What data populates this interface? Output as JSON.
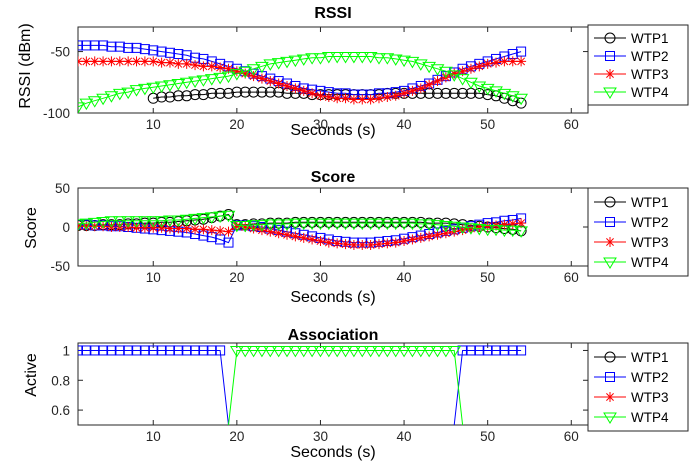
{
  "figure": {
    "width": 691,
    "height": 468
  },
  "series_styles": [
    {
      "name": "WTP1",
      "color": "#000000",
      "marker": "circle"
    },
    {
      "name": "WTP2",
      "color": "#0000FF",
      "marker": "square"
    },
    {
      "name": "WTP3",
      "color": "#FF0000",
      "marker": "asterisk"
    },
    {
      "name": "WTP4",
      "color": "#00FF00",
      "marker": "triangle-down"
    }
  ],
  "chart_data": [
    {
      "type": "line",
      "title": "RSSI",
      "xlabel": "Seconds (s)",
      "ylabel": "RSSI (dBm)",
      "xlim": [
        1,
        62
      ],
      "ylim": [
        -100,
        -30
      ],
      "xticks": [
        10,
        20,
        30,
        40,
        50,
        60
      ],
      "yticks": [
        -100,
        -50
      ],
      "legend_position": "right",
      "grid": false,
      "x": [
        1,
        2,
        3,
        4,
        5,
        6,
        7,
        8,
        9,
        10,
        11,
        12,
        13,
        14,
        15,
        16,
        17,
        18,
        19,
        20,
        21,
        22,
        23,
        24,
        25,
        26,
        27,
        28,
        29,
        30,
        31,
        32,
        33,
        34,
        35,
        36,
        37,
        38,
        39,
        40,
        41,
        42,
        43,
        44,
        45,
        46,
        47,
        48,
        49,
        50,
        51,
        52,
        53,
        54
      ],
      "series": [
        {
          "name": "WTP1",
          "values": [
            null,
            null,
            null,
            null,
            null,
            null,
            null,
            null,
            null,
            -88,
            -87,
            -87,
            -86,
            -86,
            -85,
            -85,
            -84,
            -84,
            -84,
            -83,
            -83,
            -83,
            -83,
            -83,
            -83,
            -84,
            -84,
            -84,
            -85,
            -85,
            -85,
            -85,
            -85,
            -85,
            -85,
            -85,
            -85,
            -84,
            -84,
            -84,
            -84,
            -84,
            -84,
            -84,
            -84,
            -84,
            -84,
            -84,
            -84,
            -85,
            -86,
            -88,
            -90,
            -92
          ]
        },
        {
          "name": "WTP2",
          "values": [
            -45,
            -45,
            -45,
            -45,
            -46,
            -46,
            -47,
            -47,
            -48,
            -49,
            -50,
            -51,
            -52,
            -53,
            -55,
            -56,
            -58,
            -60,
            -62,
            -64,
            -66,
            -68,
            -70,
            -72,
            -74,
            -76,
            -78,
            -80,
            -81,
            -82,
            -83,
            -84,
            -84,
            -85,
            -85,
            -85,
            -84,
            -84,
            -83,
            -82,
            -80,
            -78,
            -76,
            -73,
            -70,
            -67,
            -64,
            -62,
            -60,
            -58,
            -56,
            -54,
            -52,
            -50
          ]
        },
        {
          "name": "WTP3",
          "values": [
            -58,
            -58,
            -58,
            -58,
            -58,
            -58,
            -58,
            -58,
            -58,
            -58,
            -59,
            -59,
            -60,
            -60,
            -61,
            -62,
            -62,
            -63,
            -64,
            -66,
            -68,
            -70,
            -72,
            -74,
            -76,
            -78,
            -80,
            -82,
            -84,
            -86,
            -87,
            -88,
            -88,
            -89,
            -89,
            -89,
            -88,
            -87,
            -86,
            -84,
            -82,
            -80,
            -77,
            -74,
            -71,
            -68,
            -66,
            -64,
            -62,
            -60,
            -59,
            -58,
            -58,
            -58
          ]
        },
        {
          "name": "WTP4",
          "values": [
            -95,
            -92,
            -90,
            -88,
            -86,
            -84,
            -83,
            -81,
            -80,
            -79,
            -78,
            -77,
            -76,
            -75,
            -74,
            -73,
            -72,
            -71,
            -70,
            -68,
            -66,
            -64,
            -62,
            -60,
            -59,
            -58,
            -57,
            -56,
            -55,
            -55,
            -54,
            -54,
            -54,
            -54,
            -54,
            -54,
            -55,
            -55,
            -56,
            -57,
            -58,
            -60,
            -62,
            -64,
            -66,
            -69,
            -72,
            -75,
            -78,
            -80,
            -82,
            -84,
            -86,
            -88
          ]
        }
      ]
    },
    {
      "type": "line",
      "title": "Score",
      "xlabel": "Seconds (s)",
      "ylabel": "Score",
      "xlim": [
        1,
        62
      ],
      "ylim": [
        -50,
        50
      ],
      "xticks": [
        10,
        20,
        30,
        40,
        50,
        60
      ],
      "yticks": [
        -50,
        0,
        50
      ],
      "legend_position": "right",
      "grid": false,
      "x": [
        1,
        2,
        3,
        4,
        5,
        6,
        7,
        8,
        9,
        10,
        11,
        12,
        13,
        14,
        15,
        16,
        17,
        18,
        19,
        20,
        21,
        22,
        23,
        24,
        25,
        26,
        27,
        28,
        29,
        30,
        31,
        32,
        33,
        34,
        35,
        36,
        37,
        38,
        39,
        40,
        41,
        42,
        43,
        44,
        45,
        46,
        47,
        48,
        49,
        50,
        51,
        52,
        53,
        54
      ],
      "series": [
        {
          "name": "WTP1",
          "values": [
            2,
            2,
            2,
            3,
            3,
            3,
            4,
            4,
            5,
            5,
            6,
            6,
            7,
            8,
            9,
            10,
            12,
            14,
            16,
            3,
            3,
            4,
            4,
            5,
            5,
            5,
            6,
            6,
            6,
            6,
            6,
            6,
            6,
            6,
            6,
            6,
            6,
            6,
            6,
            6,
            6,
            6,
            5,
            5,
            5,
            4,
            3,
            2,
            1,
            0,
            -1,
            -2,
            -3,
            -5
          ]
        },
        {
          "name": "WTP2",
          "values": [
            3,
            3,
            2,
            2,
            1,
            1,
            0,
            -1,
            -2,
            -3,
            -4,
            -5,
            -6,
            -7,
            -9,
            -11,
            -13,
            -16,
            -20,
            2,
            2,
            1,
            0,
            -2,
            -4,
            -6,
            -8,
            -10,
            -12,
            -14,
            -16,
            -18,
            -19,
            -20,
            -20,
            -20,
            -19,
            -18,
            -17,
            -15,
            -13,
            -11,
            -9,
            -7,
            -5,
            -3,
            -1,
            1,
            3,
            5,
            6,
            8,
            9,
            11
          ]
        },
        {
          "name": "WTP3",
          "values": [
            1,
            1,
            1,
            1,
            0,
            0,
            0,
            -1,
            -1,
            -1,
            -1,
            -2,
            -2,
            -2,
            -3,
            -3,
            -4,
            -5,
            -6,
            1,
            0,
            -2,
            -4,
            -6,
            -8,
            -10,
            -12,
            -14,
            -16,
            -18,
            -20,
            -21,
            -22,
            -23,
            -23,
            -23,
            -22,
            -21,
            -20,
            -18,
            -16,
            -14,
            -12,
            -10,
            -8,
            -6,
            -4,
            -2,
            0,
            1,
            2,
            3,
            4,
            5
          ]
        },
        {
          "name": "WTP4",
          "values": [
            4,
            5,
            6,
            7,
            8,
            8,
            8,
            8,
            8,
            8,
            8,
            9,
            9,
            10,
            11,
            12,
            13,
            14,
            15,
            2,
            2,
            3,
            3,
            4,
            4,
            4,
            5,
            5,
            5,
            5,
            5,
            5,
            5,
            5,
            5,
            5,
            5,
            5,
            5,
            5,
            5,
            4,
            4,
            3,
            2,
            1,
            0,
            -1,
            -2,
            -3,
            -3,
            -4,
            -4,
            -5
          ]
        }
      ]
    },
    {
      "type": "line",
      "title": "Association",
      "xlabel": "Seconds (s)",
      "ylabel": "Active",
      "xlim": [
        1,
        62
      ],
      "ylim": [
        0.5,
        1.05
      ],
      "xticks": [
        10,
        20,
        30,
        40,
        50,
        60
      ],
      "yticks": [
        0.6,
        0.8,
        1
      ],
      "legend_position": "right",
      "grid": false,
      "x": [
        1,
        2,
        3,
        4,
        5,
        6,
        7,
        8,
        9,
        10,
        11,
        12,
        13,
        14,
        15,
        16,
        17,
        18,
        19,
        20,
        21,
        22,
        23,
        24,
        25,
        26,
        27,
        28,
        29,
        30,
        31,
        32,
        33,
        34,
        35,
        36,
        37,
        38,
        39,
        40,
        41,
        42,
        43,
        44,
        45,
        46,
        47,
        48,
        49,
        50,
        51,
        52,
        53,
        54
      ],
      "series": [
        {
          "name": "WTP1",
          "values": [
            null,
            null,
            null,
            null,
            null,
            null,
            null,
            null,
            null,
            null,
            null,
            null,
            null,
            null,
            null,
            null,
            null,
            null,
            null,
            null,
            null,
            null,
            null,
            null,
            null,
            null,
            null,
            null,
            null,
            null,
            null,
            null,
            null,
            null,
            null,
            null,
            null,
            null,
            null,
            null,
            null,
            null,
            null,
            null,
            null,
            null,
            null,
            null,
            null,
            null,
            null,
            null,
            null,
            null
          ]
        },
        {
          "name": "WTP2",
          "values": [
            1,
            1,
            1,
            1,
            1,
            1,
            1,
            1,
            1,
            1,
            1,
            1,
            1,
            1,
            1,
            1,
            1,
            1,
            0.5,
            null,
            null,
            null,
            null,
            null,
            null,
            null,
            null,
            null,
            null,
            null,
            null,
            null,
            null,
            null,
            null,
            null,
            null,
            null,
            null,
            null,
            null,
            null,
            null,
            null,
            null,
            0.5,
            1,
            1,
            1,
            1,
            1,
            1,
            1,
            1
          ]
        },
        {
          "name": "WTP3",
          "values": [
            null,
            null,
            null,
            null,
            null,
            null,
            null,
            null,
            null,
            null,
            null,
            null,
            null,
            null,
            null,
            null,
            null,
            null,
            null,
            null,
            null,
            null,
            null,
            null,
            null,
            null,
            null,
            null,
            null,
            null,
            null,
            null,
            null,
            null,
            null,
            null,
            null,
            null,
            null,
            null,
            null,
            null,
            null,
            null,
            null,
            null,
            null,
            null,
            null,
            null,
            null,
            null,
            null,
            null
          ]
        },
        {
          "name": "WTP4",
          "values": [
            null,
            null,
            null,
            null,
            null,
            null,
            null,
            null,
            null,
            null,
            null,
            null,
            null,
            null,
            null,
            null,
            null,
            null,
            0.5,
            1,
            1,
            1,
            1,
            1,
            1,
            1,
            1,
            1,
            1,
            1,
            1,
            1,
            1,
            1,
            1,
            1,
            1,
            1,
            1,
            1,
            1,
            1,
            1,
            1,
            1,
            1,
            0.5,
            null,
            null,
            null,
            null,
            null,
            null,
            null
          ]
        }
      ]
    }
  ]
}
